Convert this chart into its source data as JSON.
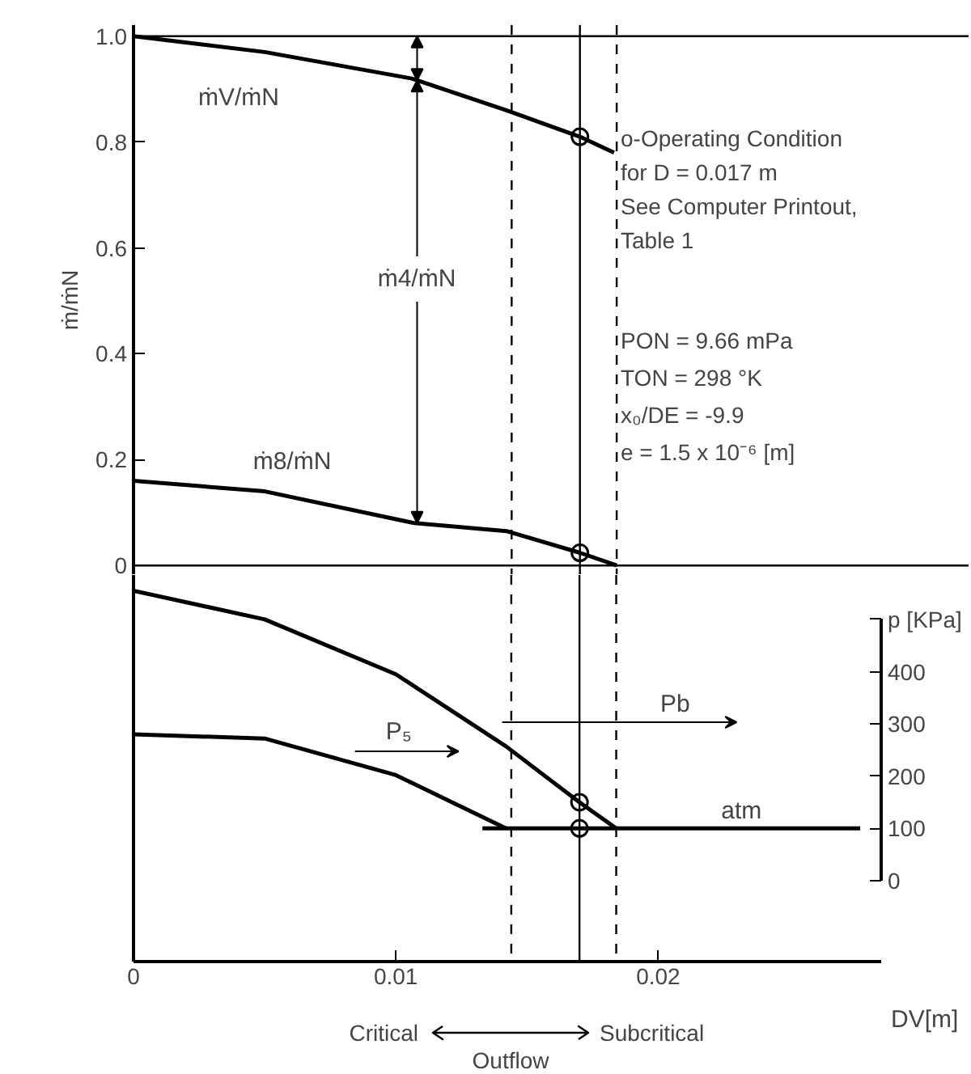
{
  "chart_data": [
    {
      "type": "line",
      "ylabel": "ṁ/ṁN",
      "xlim": [
        0,
        0.0318
      ],
      "ylim": [
        -0.018,
        1.021
      ],
      "xticks": [
        0,
        0.01,
        0.02
      ],
      "yticks": [
        0,
        0.2,
        0.4,
        0.6,
        0.8,
        {
          "value": 1.0,
          "label": "1.0"
        }
      ],
      "tick_labels": "y",
      "grid": false,
      "series": [
        {
          "color": "#000000",
          "x": [
            0,
            0.005,
            0.0106,
            0.0142,
            0.017,
            0.0183
          ],
          "values": [
            1.0,
            0.97,
            0.92,
            0.86,
            0.81,
            0.78
          ]
        },
        {
          "color": "#000000",
          "x": [
            0,
            0.005,
            0.0107,
            0.0142,
            0.017,
            0.0184
          ],
          "values": [
            0.16,
            0.14,
            0.08,
            0.065,
            0.024,
            0
          ]
        },
        {
          "type": "scatter",
          "marker": "circle",
          "color": "#000000",
          "x": [
            0.017,
            0.017
          ],
          "values": [
            0.81,
            0.024
          ]
        }
      ],
      "ref_lines": [
        {
          "axis": "y",
          "value": 1.0,
          "line_style": "solid"
        },
        {
          "axis": "y",
          "value": 0,
          "line_style": "solid"
        },
        {
          "axis": "x",
          "value": 0.0144,
          "line_style": "dashed"
        },
        {
          "axis": "x",
          "value": 0.017,
          "line_style": "solid"
        },
        {
          "axis": "x",
          "value": 0.0184,
          "line_style": "dashed"
        }
      ],
      "annotations": [
        "ṁV/ṁN",
        {
          "text": "ṁ4/ṁN",
          "x": 0.0108,
          "y": 0.08
        },
        "ṁ8/ṁN",
        "o-Operating Condition",
        "for D = 0.017 m",
        "See Computer Printout,",
        "Table 1",
        "PON = 9.66 mPa",
        "TON = 298 °K",
        "x₀/DE = -9.9",
        "e = 1.5 x 10⁻⁶ [m]"
      ]
    },
    {
      "type": "line",
      "xlabel": "DV[m]",
      "xlim": [
        0,
        0.0285
      ],
      "ylim": [
        -155,
        585
      ],
      "xticks": [
        0,
        0.01,
        0.02
      ],
      "yticks": [
        0,
        100,
        200,
        300,
        400,
        {
          "value": 500,
          "label": "p [KPa]"
        }
      ],
      "grid": false,
      "series": [
        {
          "color": "#000000",
          "x": [
            0,
            0.005,
            0.01,
            0.0142,
            0.017,
            0.0184
          ],
          "values": [
            555,
            500,
            395,
            257,
            150,
            100
          ]
        },
        {
          "color": "#000000",
          "x": [
            0,
            0.005,
            0.01,
            0.0142
          ],
          "values": [
            280,
            272,
            202,
            100
          ]
        },
        {
          "color": "#000000",
          "x": [
            0.0133,
            0.0277
          ],
          "values": [
            100,
            100
          ]
        },
        {
          "type": "scatter",
          "marker": "circle",
          "color": "#000000",
          "x": [
            0.017,
            0.017
          ],
          "values": [
            150,
            100
          ]
        }
      ],
      "ref_lines": [
        {
          "axis": "x",
          "value": 0.0144,
          "line_style": "dashed"
        },
        {
          "axis": "x",
          "value": 0.017,
          "line_style": "solid"
        },
        {
          "axis": "x",
          "value": 0.0184,
          "line_style": "dashed"
        }
      ],
      "annotations": [
        "P₅",
        "Pb",
        "atm",
        "Critical",
        "Subcritical",
        "Outflow"
      ]
    }
  ]
}
